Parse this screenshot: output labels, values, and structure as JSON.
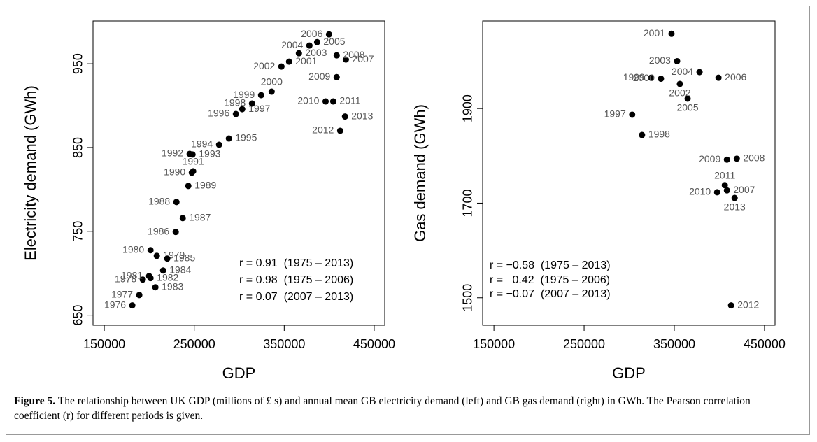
{
  "chart_data": [
    {
      "type": "scatter",
      "xlabel": "GDP",
      "ylabel": "Electricity demand (GWh)",
      "color": "#000000",
      "xlim": [
        137500,
        461700
      ],
      "ylim": [
        638,
        1001
      ],
      "xticks": [
        150000,
        250000,
        350000,
        450000
      ],
      "yticks": [
        650,
        750,
        850,
        950
      ],
      "labels": [
        "1976",
        "1977",
        "1978",
        "1979",
        "1980",
        "1981",
        "1982",
        "1983",
        "1984",
        "1985",
        "1986",
        "1987",
        "1988",
        "1989",
        "1990",
        "1991",
        "1992",
        "1993",
        "1994",
        "1995",
        "1996",
        "1997",
        "1998",
        "1999",
        "2000",
        "2001",
        "2002",
        "2003",
        "2004",
        "2005",
        "2006",
        "2007",
        "2008",
        "2009",
        "2010",
        "2011",
        "2012",
        "2013"
      ],
      "x": [
        181100,
        188900,
        192800,
        208400,
        201400,
        199800,
        201400,
        206800,
        215400,
        220000,
        229400,
        237200,
        230200,
        243400,
        247300,
        248800,
        244900,
        248100,
        277600,
        288500,
        296300,
        303300,
        314200,
        324300,
        336000,
        355400,
        346900,
        366300,
        378000,
        386600,
        399800,
        418500,
        408300,
        408300,
        396000,
        404500,
        412200,
        417600
      ],
      "values": [
        661.7,
        674,
        692.5,
        720.8,
        727.5,
        696.7,
        694.2,
        683.3,
        703.3,
        717.5,
        749.2,
        765.8,
        785,
        804.2,
        820,
        821.7,
        842.5,
        841.7,
        853.3,
        860.8,
        890,
        895.8,
        902.5,
        912.5,
        916.7,
        952.5,
        946.7,
        962.5,
        971.7,
        975.8,
        985,
        955,
        960,
        934,
        905,
        905,
        870,
        887
      ],
      "annotations": [
        "r = 0.91  (1975 – 2013)",
        "r = 0.98  (1975 – 2006)",
        "r = 0.07  (2007 – 2013)"
      ]
    },
    {
      "type": "scatter",
      "xlabel": "GDP",
      "ylabel": "Gas demand (GWh)",
      "color": "#000000",
      "xlim": [
        137500,
        461700
      ],
      "ylim": [
        1442,
        2085
      ],
      "xticks": [
        150000,
        250000,
        350000,
        450000
      ],
      "yticks": [
        1500,
        1700,
        1900
      ],
      "labels": [
        "1997",
        "1998",
        "1999",
        "2000",
        "2001",
        "2002",
        "2003",
        "2004",
        "2005",
        "2006",
        "2007",
        "2008",
        "2009",
        "2010",
        "2011",
        "2012",
        "2013"
      ],
      "x": [
        303300,
        314200,
        324300,
        335200,
        346900,
        356200,
        353100,
        378000,
        364800,
        399000,
        408400,
        419300,
        408400,
        397500,
        406000,
        413000,
        416900
      ],
      "values": [
        1887,
        1844,
        1965,
        1963,
        2058,
        1952,
        2000,
        1977,
        1921,
        1965,
        1727,
        1794,
        1792,
        1723,
        1738,
        1484,
        1711
      ],
      "annotations": [
        "r = −0.58  (1975 – 2013)",
        "r =   0.42  (1975 – 2006)",
        "r = −0.07  (2007 – 2013)"
      ]
    }
  ],
  "caption": {
    "label": "Figure 5.",
    "text": "The relationship between UK GDP (millions of £ s) and annual mean GB electricity demand (left) and GB gas demand (right) in GWh. The Pearson correlation coefficient (r) for different periods is given."
  }
}
